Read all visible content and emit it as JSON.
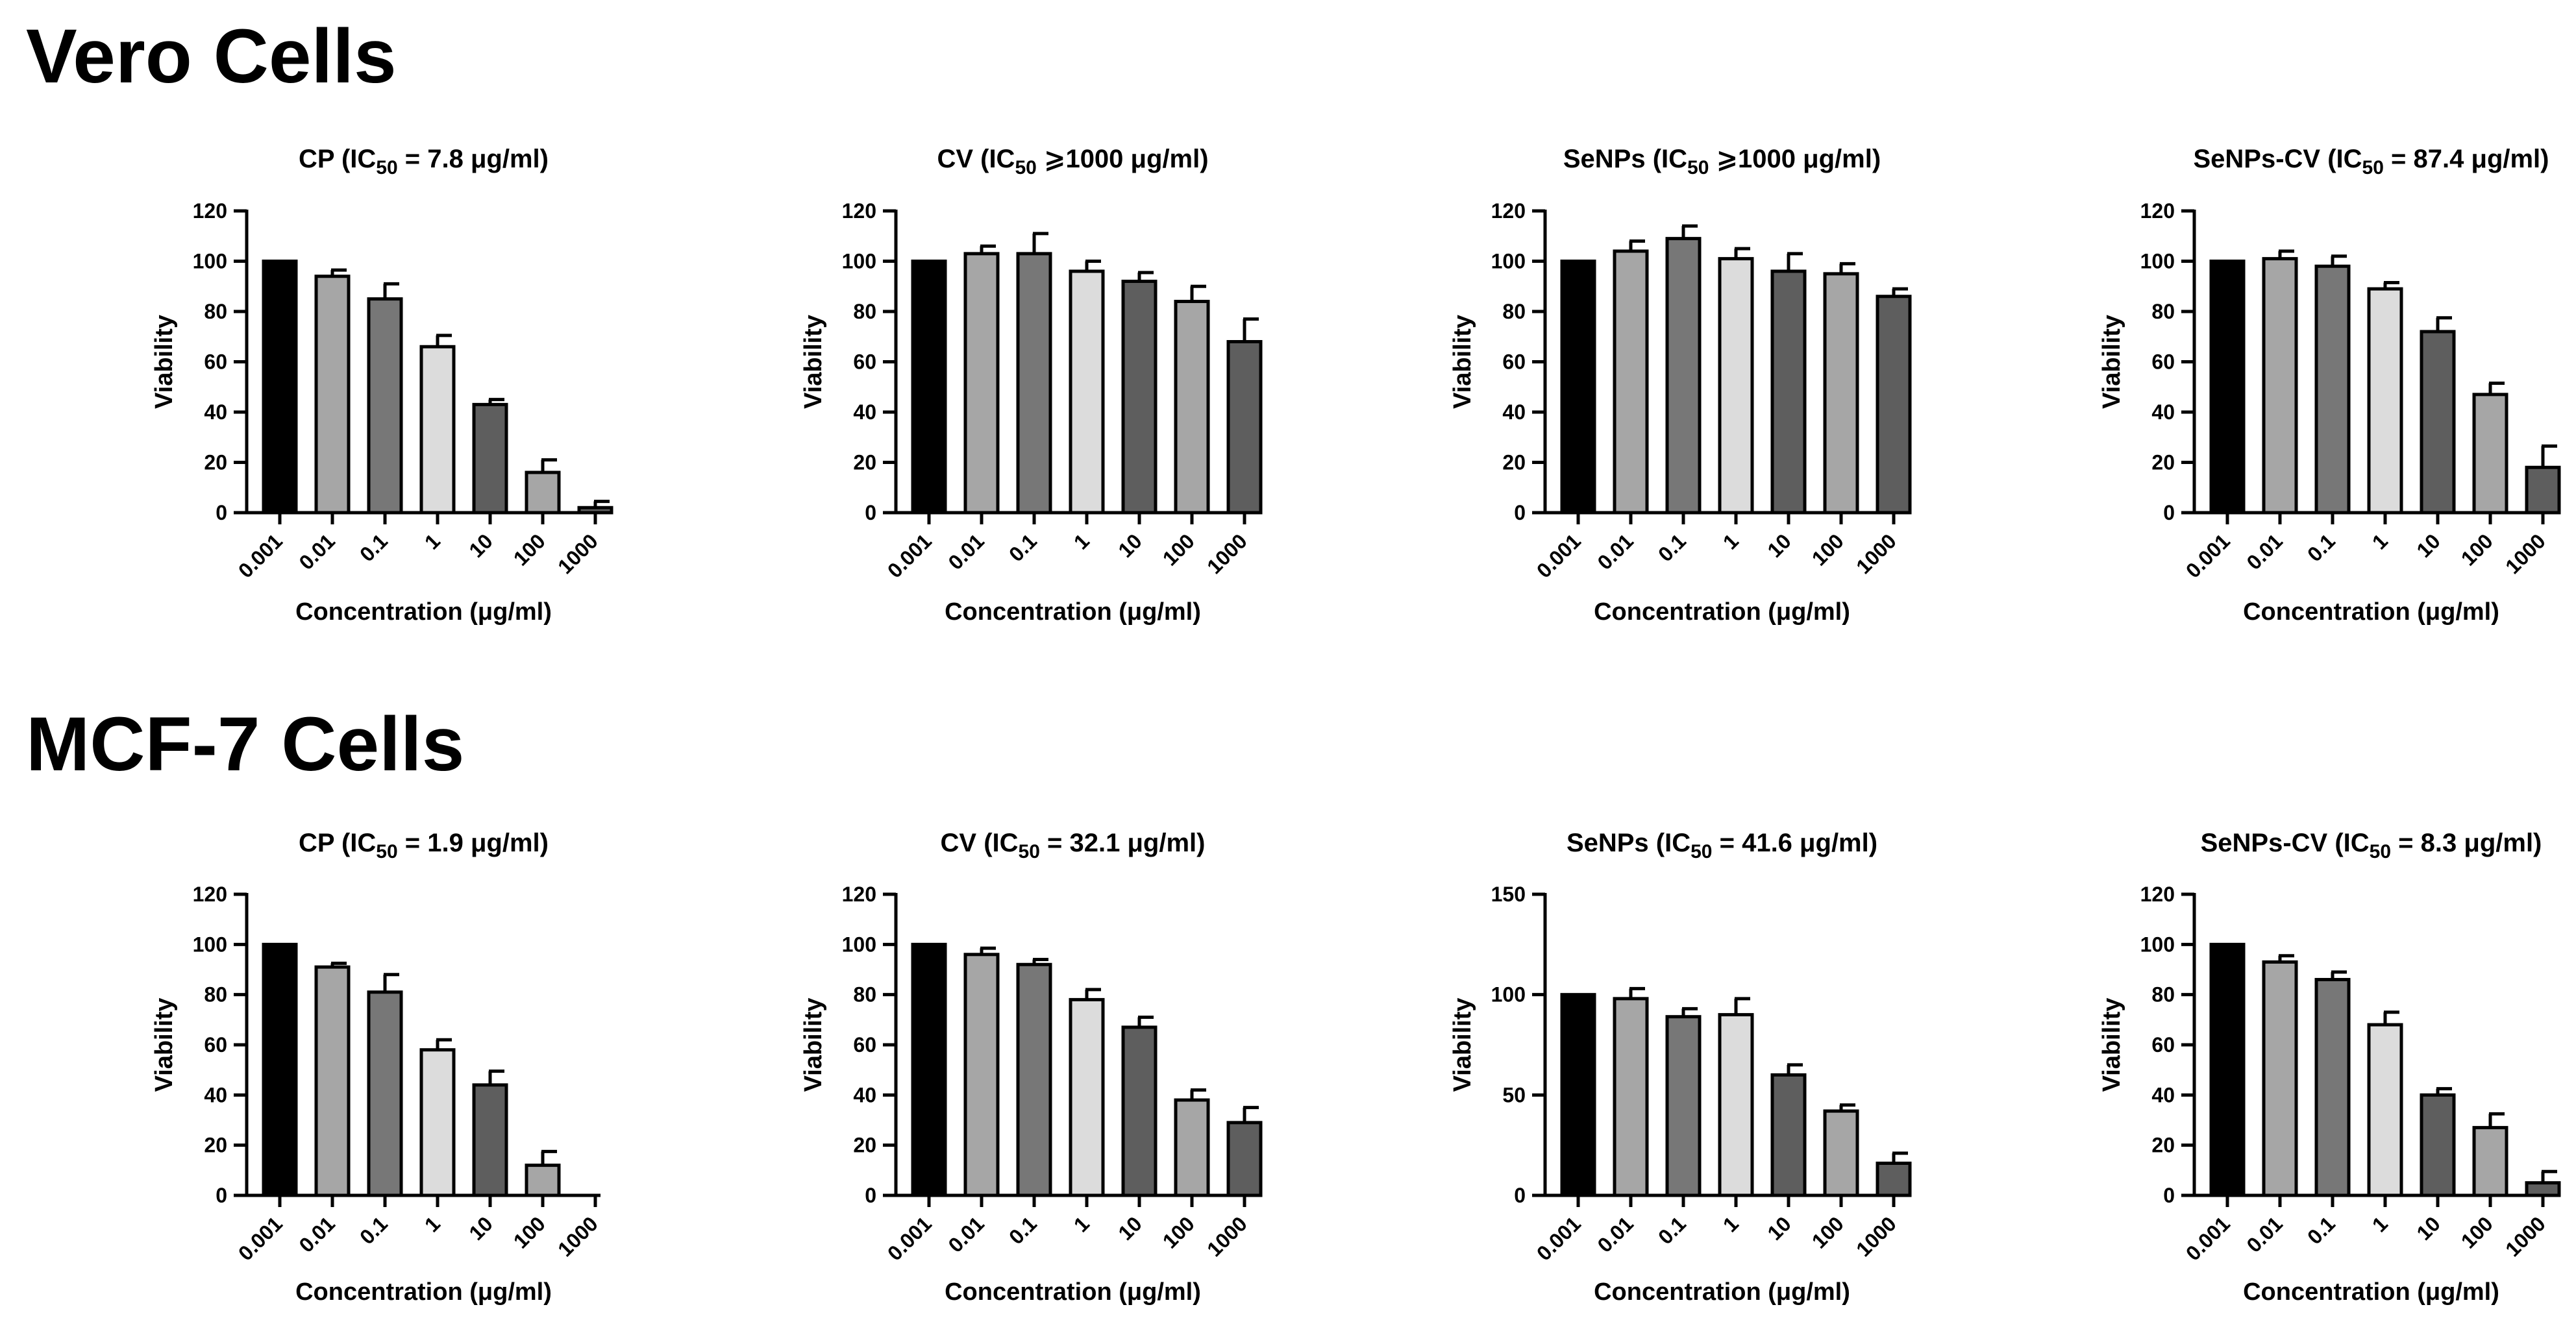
{
  "sections": [
    {
      "title": "Vero Cells"
    },
    {
      "title": "MCF-7 Cells"
    }
  ],
  "colors": {
    "bars": [
      "#000000",
      "#a6a6a6",
      "#777777",
      "#dcdcdc",
      "#5e5e5e",
      "#a6a6a6",
      "#5e5e5e"
    ],
    "stroke": "#000000"
  },
  "chart_data": [
    {
      "type": "bar",
      "section": 0,
      "title_pre": "CP (IC",
      "title_sub": "50",
      "title_post": " = 7.8 μg/ml)",
      "categories": [
        "0.001",
        "0.01",
        "0.1",
        "1",
        "10",
        "100",
        "1000"
      ],
      "values": [
        100,
        94,
        85,
        66,
        43,
        16,
        2
      ],
      "errors": [
        0,
        2.5,
        6,
        4.5,
        2,
        5,
        2.5
      ],
      "xlabel": "Concentration (μg/ml)",
      "ylabel": "Viability",
      "ylim": [
        0,
        120
      ],
      "yticks": [
        0,
        20,
        40,
        60,
        80,
        100,
        120
      ]
    },
    {
      "type": "bar",
      "section": 0,
      "title_pre": "CV (IC",
      "title_sub": "50",
      "title_post": " ⩾1000 μg/ml)",
      "categories": [
        "0.001",
        "0.01",
        "0.1",
        "1",
        "10",
        "100",
        "1000"
      ],
      "values": [
        100,
        103,
        103,
        96,
        92,
        84,
        68
      ],
      "errors": [
        0,
        3,
        8,
        4,
        3.5,
        6,
        9
      ],
      "xlabel": "Concentration (μg/ml)",
      "ylabel": "Viability",
      "ylim": [
        0,
        120
      ],
      "yticks": [
        0,
        20,
        40,
        60,
        80,
        100,
        120
      ]
    },
    {
      "type": "bar",
      "section": 0,
      "title_pre": "SeNPs (IC",
      "title_sub": "50",
      "title_post": " ⩾1000 μg/ml)",
      "categories": [
        "0.001",
        "0.01",
        "0.1",
        "1",
        "10",
        "100",
        "1000"
      ],
      "values": [
        100,
        104,
        109,
        101,
        96,
        95,
        86
      ],
      "errors": [
        0,
        4,
        5,
        4,
        7,
        4,
        3
      ],
      "xlabel": "Concentration (μg/ml)",
      "ylabel": "Viability",
      "ylim": [
        0,
        120
      ],
      "yticks": [
        0,
        20,
        40,
        60,
        80,
        100,
        120
      ]
    },
    {
      "type": "bar",
      "section": 0,
      "title_pre": "SeNPs-CV (IC",
      "title_sub": "50",
      "title_post": " = 87.4 μg/ml)",
      "categories": [
        "0.001",
        "0.01",
        "0.1",
        "1",
        "10",
        "100",
        "1000"
      ],
      "values": [
        100,
        101,
        98,
        89,
        72,
        47,
        18
      ],
      "errors": [
        0,
        3,
        4,
        2.5,
        5.5,
        4.5,
        8.5
      ],
      "xlabel": "Concentration (μg/ml)",
      "ylabel": "Viability",
      "ylim": [
        0,
        120
      ],
      "yticks": [
        0,
        20,
        40,
        60,
        80,
        100,
        120
      ]
    },
    {
      "type": "bar",
      "section": 1,
      "title_pre": "CP (IC",
      "title_sub": "50",
      "title_post": " = 1.9 μg/ml)",
      "categories": [
        "0.001",
        "0.01",
        "0.1",
        "1",
        "10",
        "100",
        "1000"
      ],
      "values": [
        100,
        91,
        81,
        58,
        44,
        12,
        0
      ],
      "errors": [
        0,
        1.5,
        7,
        4,
        5.5,
        5.5,
        0
      ],
      "xlabel": "Concentration (μg/ml)",
      "ylabel": "Viability",
      "ylim": [
        0,
        120
      ],
      "yticks": [
        0,
        20,
        40,
        60,
        80,
        100,
        120
      ]
    },
    {
      "type": "bar",
      "section": 1,
      "title_pre": "CV (IC",
      "title_sub": "50",
      "title_post": " = 32.1 μg/ml)",
      "categories": [
        "0.001",
        "0.01",
        "0.1",
        "1",
        "10",
        "100",
        "1000"
      ],
      "values": [
        100,
        96,
        92,
        78,
        67,
        38,
        29
      ],
      "errors": [
        0,
        2.5,
        2,
        4,
        4,
        4,
        6
      ],
      "xlabel": "Concentration (μg/ml)",
      "ylabel": "Viability",
      "ylim": [
        0,
        120
      ],
      "yticks": [
        0,
        20,
        40,
        60,
        80,
        100,
        120
      ]
    },
    {
      "type": "bar",
      "section": 1,
      "title_pre": "SeNPs (IC",
      "title_sub": "50",
      "title_post": " = 41.6 μg/ml)",
      "categories": [
        "0.001",
        "0.01",
        "0.1",
        "1",
        "10",
        "100",
        "1000"
      ],
      "values": [
        100,
        98,
        89,
        90,
        60,
        42,
        16
      ],
      "errors": [
        0,
        5,
        4,
        8,
        5,
        3,
        5
      ],
      "xlabel": "Concentration (μg/ml)",
      "ylabel": "Viability",
      "ylim": [
        0,
        150
      ],
      "yticks": [
        0,
        50,
        100,
        150
      ]
    },
    {
      "type": "bar",
      "section": 1,
      "title_pre": "SeNPs-CV (IC",
      "title_sub": "50",
      "title_post": " = 8.3 μg/ml)",
      "categories": [
        "0.001",
        "0.01",
        "0.1",
        "1",
        "10",
        "100",
        "1000"
      ],
      "values": [
        100,
        93,
        86,
        68,
        40,
        27,
        5
      ],
      "errors": [
        0,
        2.5,
        3,
        5,
        2.5,
        5.5,
        4.5
      ],
      "xlabel": "Concentration (μg/ml)",
      "ylabel": "Viability",
      "ylim": [
        0,
        120
      ],
      "yticks": [
        0,
        20,
        40,
        60,
        80,
        100,
        120
      ]
    }
  ]
}
